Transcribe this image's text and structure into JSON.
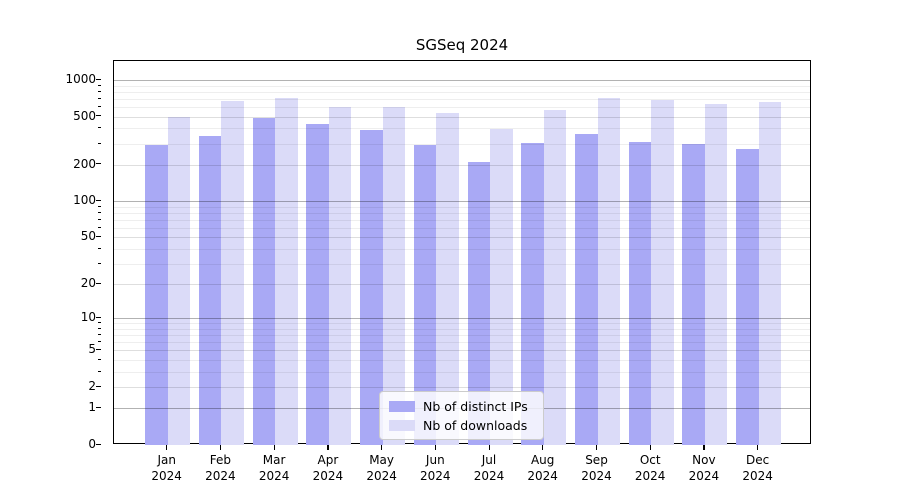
{
  "title": "SGSeq 2024",
  "legend": {
    "items": [
      {
        "label": "Nb of distinct IPs",
        "color": "#a9a9f5"
      },
      {
        "label": "Nb of downloads",
        "color": "#dbdbf8"
      }
    ]
  },
  "colors": {
    "distinct_ips_bar": "#a9a9f5",
    "downloads_bar": "#dbdbf8",
    "axis_frame": "#000000",
    "grid_decade": "#b5b5b5",
    "grid_labeled": "#dedede",
    "grid_minor": "#ededed"
  },
  "chart_data": {
    "type": "bar",
    "title": "SGSeq 2024",
    "xlabel": "",
    "ylabel": "",
    "scale": "log1p",
    "grid": true,
    "legend_position": "bottom-center",
    "categories": [
      "Jan 2024",
      "Feb 2024",
      "Mar 2024",
      "Apr 2024",
      "May 2024",
      "Jun 2024",
      "Jul 2024",
      "Aug 2024",
      "Sep 2024",
      "Oct 2024",
      "Nov 2024",
      "Dec 2024"
    ],
    "month_line1": [
      "Jan",
      "Feb",
      "Mar",
      "Apr",
      "May",
      "Jun",
      "Jul",
      "Aug",
      "Sep",
      "Oct",
      "Nov",
      "Dec"
    ],
    "month_line2": [
      "2024",
      "2024",
      "2024",
      "2024",
      "2024",
      "2024",
      "2024",
      "2024",
      "2024",
      "2024",
      "2024",
      "2024"
    ],
    "series": [
      {
        "name": "Nb of distinct IPs",
        "color": "#a9a9f5",
        "values": [
          290,
          345,
          485,
          437,
          388,
          290,
          213,
          302,
          362,
          309,
          296,
          272
        ]
      },
      {
        "name": "Nb of downloads",
        "color": "#dbdbf8",
        "values": [
          495,
          669,
          713,
          597,
          597,
          536,
          398,
          570,
          708,
          686,
          636,
          664
        ]
      }
    ],
    "y_ticks": [
      0,
      1,
      2,
      5,
      10,
      20,
      50,
      100,
      200,
      500,
      1000
    ],
    "y_minor_ticks": [
      3,
      4,
      6,
      7,
      8,
      9,
      30,
      40,
      60,
      70,
      80,
      90,
      300,
      400,
      600,
      700,
      800,
      900
    ],
    "ylim": [
      0,
      1435
    ]
  }
}
